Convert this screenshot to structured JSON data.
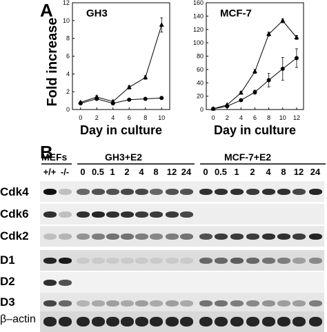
{
  "panel_a": {
    "letter": "A",
    "y_axis_label": "Fold increase",
    "charts": [
      {
        "title": "GH3",
        "xlabel": "Day in culture",
        "x_ticks": [
          "0",
          "2",
          "4",
          "6",
          "8",
          "10"
        ],
        "y_ticks": [
          "0",
          "2",
          "4",
          "6",
          "8",
          "10",
          "12"
        ]
      },
      {
        "title": "MCF-7",
        "xlabel": "Day in culture",
        "x_ticks": [
          "0",
          "2",
          "4",
          "6",
          "8",
          "10",
          "12"
        ],
        "y_ticks": [
          "0",
          "20",
          "40",
          "60",
          "80",
          "100",
          "120",
          "140",
          "160"
        ]
      }
    ]
  },
  "chart_data": [
    {
      "type": "line",
      "title": "GH3",
      "xlabel": "Day in culture",
      "ylabel": "Fold increase",
      "xlim": [
        -1,
        11
      ],
      "ylim": [
        0,
        12
      ],
      "x": [
        0,
        2,
        4,
        6,
        8,
        10
      ],
      "series": [
        {
          "marker": "triangle",
          "values": [
            0.8,
            1.4,
            0.9,
            2.5,
            3.6,
            9.5
          ],
          "errors": [
            0.1,
            0.15,
            0.1,
            0.2,
            0.2,
            0.8
          ]
        },
        {
          "marker": "circle",
          "values": [
            0.7,
            1.2,
            0.7,
            1.1,
            1.2,
            1.3
          ],
          "errors": [
            0.05,
            0.05,
            0.05,
            0.05,
            0.05,
            0.05
          ]
        }
      ]
    },
    {
      "type": "line",
      "title": "MCF-7",
      "xlabel": "Day in culture",
      "ylabel": "Fold increase",
      "xlim": [
        -1,
        13
      ],
      "ylim": [
        0,
        160
      ],
      "x": [
        0,
        2,
        4,
        6,
        8,
        10,
        12
      ],
      "series": [
        {
          "marker": "triangle",
          "values": [
            1,
            7,
            25,
            57,
            113,
            133,
            108
          ],
          "errors": [
            0,
            1,
            2,
            3,
            3,
            3,
            3
          ]
        },
        {
          "marker": "circle",
          "values": [
            1,
            5,
            14,
            26,
            44,
            61,
            77
          ],
          "errors": [
            0,
            1,
            2,
            3,
            10,
            17,
            14
          ]
        }
      ]
    }
  ],
  "panel_b": {
    "letter": "B",
    "group_labels": [
      "MEFs",
      "GH3+E2",
      "MCF-7+E2"
    ],
    "mef_lanes": [
      "+/+",
      "-/-"
    ],
    "time_lanes": [
      "0",
      "0.5",
      "1",
      "2",
      "4",
      "8",
      "12",
      "24"
    ],
    "rows": [
      "Cdk4",
      "Cdk6",
      "Cdk2",
      "D1",
      "D2",
      "D3",
      "β–actin"
    ]
  }
}
